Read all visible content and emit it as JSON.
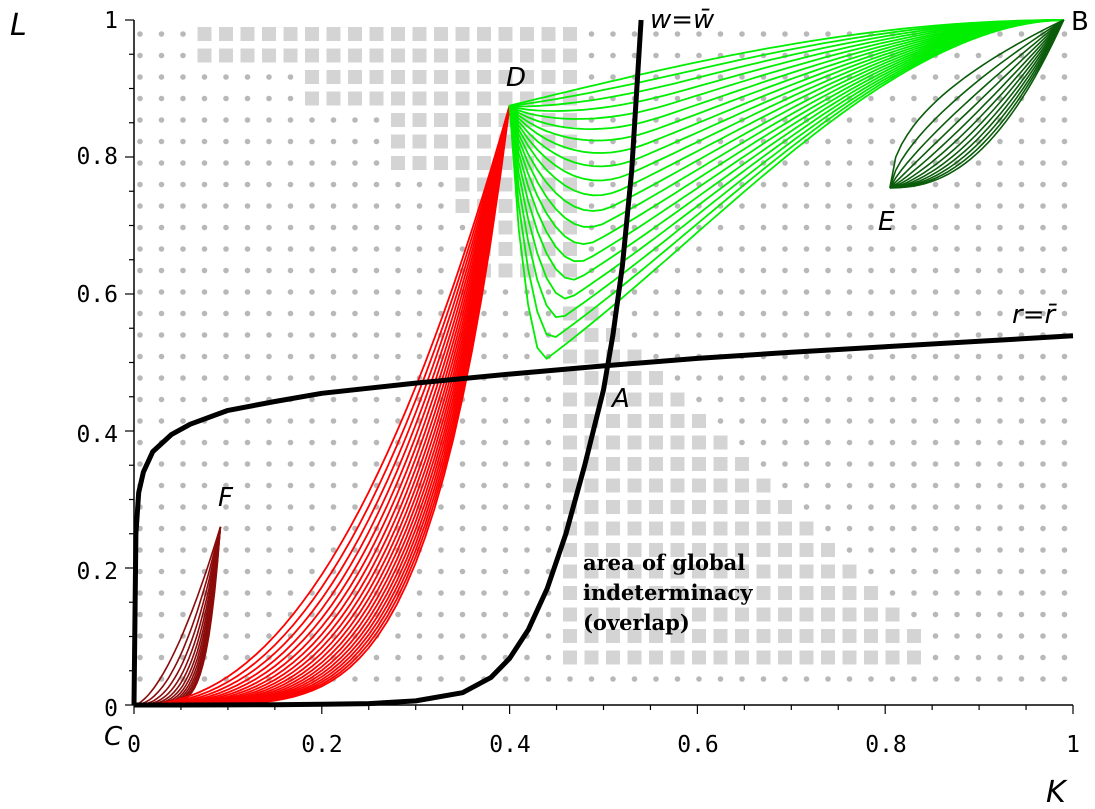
{
  "chart_data": {
    "type": "line",
    "title": "",
    "xlabel": "K",
    "ylabel": "L",
    "xlim": [
      0,
      1
    ],
    "ylim": [
      0,
      1
    ],
    "x_ticks": [
      "0",
      "0.2",
      "0.4",
      "0.6",
      "0.8",
      "1"
    ],
    "y_ticks": [
      "0",
      "0.2",
      "0.4",
      "0.6",
      "0.8",
      "1"
    ],
    "grid": "dotted",
    "legend": "none",
    "colors": {
      "curves": "#000000",
      "family_D": "#ff0000",
      "family_D_upper": "#00ee00",
      "family_E": "#0a5c0a",
      "family_F": "#8b0a0a",
      "overlap": "#d4d4d4",
      "grid_dots": "#b8b8b8"
    },
    "series": [
      {
        "name": "w=w̄",
        "x": [
          0.0,
          0.05,
          0.1,
          0.15,
          0.2,
          0.25,
          0.3,
          0.35,
          0.38,
          0.4,
          0.42,
          0.44,
          0.46,
          0.48,
          0.5,
          0.51,
          0.52,
          0.53,
          0.54
        ],
        "y": [
          0.0,
          0.0,
          0.0001,
          0.0004,
          0.001,
          0.002,
          0.006,
          0.018,
          0.04,
          0.068,
          0.11,
          0.17,
          0.25,
          0.35,
          0.46,
          0.54,
          0.64,
          0.78,
          1.0
        ]
      },
      {
        "name": "r=r̄",
        "x": [
          0.0,
          0.002,
          0.005,
          0.01,
          0.02,
          0.04,
          0.06,
          0.1,
          0.15,
          0.2,
          0.3,
          0.4,
          0.5,
          0.6,
          0.7,
          0.8,
          0.9,
          1.0
        ],
        "y": [
          0.0,
          0.25,
          0.31,
          0.34,
          0.37,
          0.395,
          0.41,
          0.43,
          0.443,
          0.455,
          0.47,
          0.483,
          0.495,
          0.506,
          0.515,
          0.523,
          0.531,
          0.539
        ]
      }
    ],
    "curve_families": [
      {
        "id": "D",
        "from": [
          0.4,
          0.875
        ],
        "x_end": 0.0,
        "y_end": 0.0,
        "count": 20
      },
      {
        "id": "D_upper",
        "from": [
          0.4,
          0.875
        ],
        "to": [
          0.99,
          1.0
        ],
        "min_low": [
          0.44,
          0.465
        ],
        "count": 20
      },
      {
        "id": "E",
        "from": [
          0.805,
          0.755
        ],
        "to": [
          0.99,
          1.0
        ],
        "count": 12
      },
      {
        "id": "F",
        "from": [
          0.092,
          0.26
        ],
        "count": 12
      }
    ],
    "annotations": {
      "A": {
        "label": "A",
        "x": 0.5,
        "y": 0.465
      },
      "B": {
        "label": "B",
        "x": 1.0,
        "y": 1.0
      },
      "C": {
        "label": "C",
        "x": 0.0,
        "y": 0.0
      },
      "D": {
        "label": "D",
        "x": 0.4,
        "y": 0.875
      },
      "E": {
        "label": "E",
        "x": 0.805,
        "y": 0.755
      },
      "F": {
        "label": "F",
        "x": 0.092,
        "y": 0.26
      },
      "w_label": "w=w̄",
      "r_label": "r=r̄",
      "overlap_text": [
        "area of global",
        "indeterminacy",
        "(overlap)"
      ]
    }
  }
}
